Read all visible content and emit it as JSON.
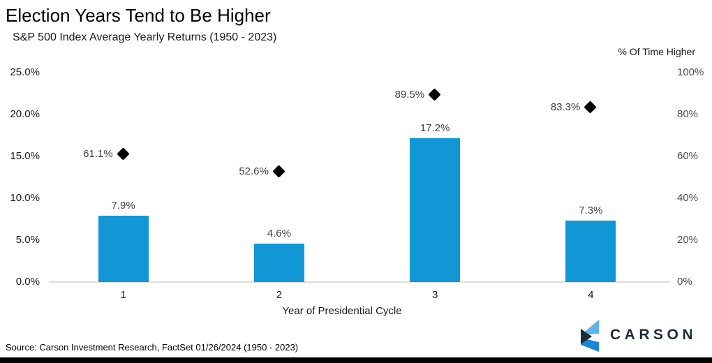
{
  "header": {
    "title": "Election Years Tend to Be Higher",
    "subtitle": "S&P 500 Index Average Yearly Returns (1950 - 2023)"
  },
  "chart_data": {
    "type": "bar",
    "title": "Election Years Tend to Be Higher",
    "subtitle": "S&P 500 Index Average Yearly Returns (1950 - 2023)",
    "categories": [
      "1",
      "2",
      "3",
      "4"
    ],
    "xlabel": "Year of Presidential Cycle",
    "series": [
      {
        "name": "S&P 500 Index Average Yearly Return",
        "type": "bar",
        "axis": "left",
        "color": "#1196D6",
        "values": [
          7.9,
          4.6,
          17.2,
          7.3
        ],
        "labels": [
          "7.9%",
          "4.6%",
          "17.2%",
          "7.3%"
        ]
      },
      {
        "name": "% Of Time Higher",
        "type": "scatter",
        "marker": "diamond",
        "axis": "right",
        "color": "#000000",
        "values": [
          61.1,
          52.6,
          89.5,
          83.3
        ],
        "labels": [
          "61.1%",
          "52.6%",
          "89.5%",
          "83.3%"
        ]
      }
    ],
    "left_axis": {
      "min": 0,
      "max": 25,
      "ticks": [
        "25.0%",
        "20.0%",
        "15.0%",
        "10.0%",
        "5.0%",
        "0.0%"
      ]
    },
    "right_axis": {
      "title": "% Of Time Higher",
      "min": 0,
      "max": 100,
      "ticks": [
        "100%",
        "80%",
        "60%",
        "40%",
        "20%",
        "0%"
      ]
    },
    "grid": false,
    "legend": false
  },
  "footer": {
    "source": "Source: Carson Investment Research, FactSet 01/26/2024 (1950 - 2023)",
    "logo_text": "CARSON"
  },
  "colors": {
    "bar_blue": "#1196D6",
    "marker_black": "#000000",
    "baseline_gray": "#DCDCDC",
    "logo_navy": "#1C2B3A",
    "logo_light_blue": "#5FB4E8",
    "logo_mid_blue": "#1B87D3"
  }
}
